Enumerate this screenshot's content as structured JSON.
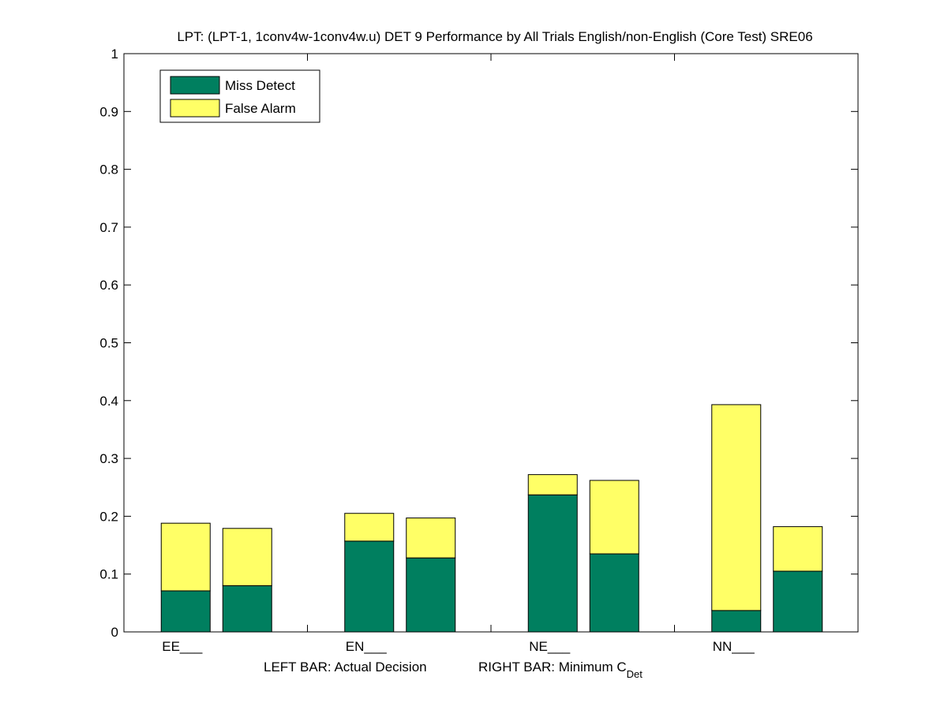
{
  "chart_data": {
    "type": "stacked-bar",
    "title": "LPT: (LPT-1, 1conv4w-1conv4w.u) DET 9 Performance by All Trials English/non-English (Core Test) SRE06",
    "categories": [
      "EE___",
      "EN___",
      "NE___",
      "NN___"
    ],
    "bar_roles": [
      "Actual Decision",
      "Minimum C_Det"
    ],
    "series": [
      {
        "name": "Miss Detect",
        "color": "#007f5f",
        "actual": [
          0.071,
          0.157,
          0.237,
          0.037
        ],
        "minimum": [
          0.08,
          0.128,
          0.135,
          0.105
        ]
      },
      {
        "name": "False Alarm",
        "color": "#ffff66",
        "actual": [
          0.117,
          0.048,
          0.035,
          0.356
        ],
        "minimum": [
          0.099,
          0.069,
          0.127,
          0.077
        ]
      }
    ],
    "totals": {
      "actual": [
        0.188,
        0.205,
        0.272,
        0.393
      ],
      "minimum": [
        0.179,
        0.197,
        0.262,
        0.182
      ]
    },
    "ylim": [
      0,
      1
    ],
    "yticks": [
      "0",
      "0.1",
      "0.2",
      "0.3",
      "0.4",
      "0.5",
      "0.6",
      "0.7",
      "0.8",
      "0.9",
      "1"
    ],
    "xlabel": {
      "left": "LEFT BAR: Actual Decision",
      "right_prefix": "RIGHT BAR: Minimum C",
      "right_subscript": "Det"
    },
    "legend": {
      "position": "top-left",
      "entries": [
        "Miss Detect",
        "False Alarm"
      ]
    }
  }
}
